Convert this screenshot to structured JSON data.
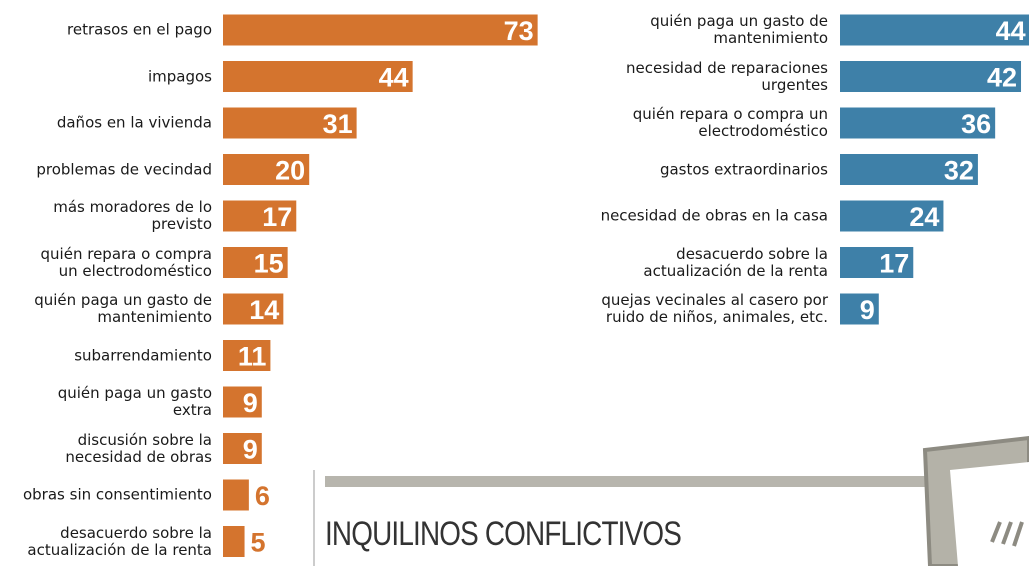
{
  "title": "INQUILINOS CONFLICTIVOS",
  "chart_data": [
    {
      "type": "bar",
      "orientation": "horizontal",
      "color": "#d4742e",
      "categories": [
        "retrasos en el pago",
        "impagos",
        "daños en la vivienda",
        "problemas de vecindad",
        "más moradores de lo\nprevisto",
        "quién repara o compra\nun electrodoméstico",
        "quién paga un gasto de\nmantenimiento",
        "subarrendamiento",
        "quién paga un gasto\nextra",
        "discusión sobre la\nnecesidad de obras",
        "obras sin consentimiento",
        "desacuerdo sobre la\nactualización de la renta"
      ],
      "values": [
        73,
        44,
        31,
        20,
        17,
        15,
        14,
        11,
        9,
        9,
        6,
        5
      ]
    },
    {
      "type": "bar",
      "orientation": "horizontal",
      "color": "#3e80a8",
      "categories": [
        "quién paga un gasto de\nmantenimiento",
        "necesidad de reparaciones\nurgentes",
        "quién repara o compra un\nelectrodoméstico",
        "gastos extraordinarios",
        "necesidad de obras en la casa",
        "desacuerdo sobre la\nactualización de la renta",
        "quejas vecinales al casero por\nruido de niños, animales, etc."
      ],
      "values": [
        44,
        42,
        36,
        32,
        24,
        17,
        9
      ]
    }
  ]
}
